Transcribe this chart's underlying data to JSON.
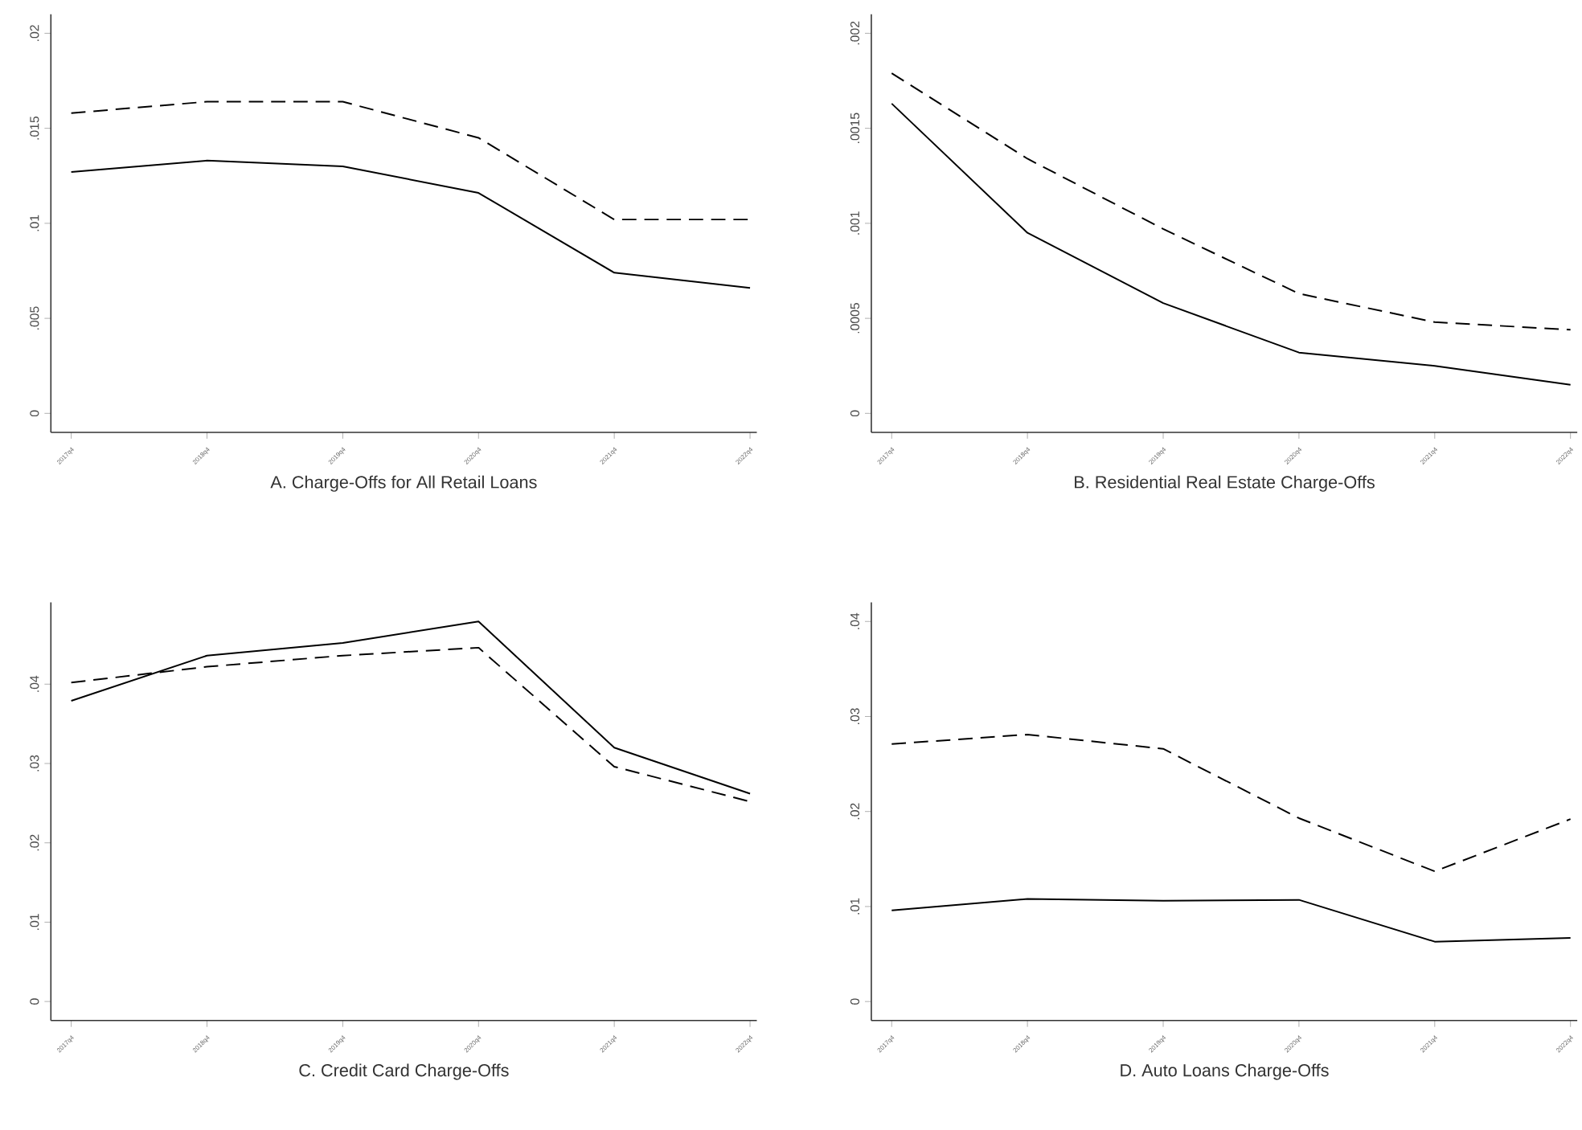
{
  "chart_data": [
    {
      "type": "line",
      "xlabel": "A. Charge-Offs for All Retail Loans",
      "categories": [
        "2017q4",
        "2018q4",
        "2019q4",
        "2020q4",
        "2021q4",
        "2022q4"
      ],
      "ylim": [
        -0.001,
        0.021
      ],
      "yticks": [
        {
          "value": 0,
          "label": "0"
        },
        {
          "value": 0.005,
          "label": ".005"
        },
        {
          "value": 0.01,
          "label": ".01"
        },
        {
          "value": 0.015,
          "label": ".015"
        },
        {
          "value": 0.02,
          "label": ".02"
        }
      ],
      "grid": false,
      "series": [
        {
          "color": "#000000",
          "line_style": "solid",
          "values": [
            0.0127,
            0.0133,
            0.013,
            0.0116,
            0.0074,
            0.0066
          ]
        },
        {
          "color": "#000000",
          "line_style": "dashed",
          "values": [
            0.0158,
            0.0164,
            0.0164,
            0.0145,
            0.0102,
            0.0102
          ]
        }
      ]
    },
    {
      "type": "line",
      "xlabel": "B. Residential Real Estate Charge-Offs",
      "categories": [
        "2017q4",
        "2018q4",
        "2019q4",
        "2020q4",
        "2021q4",
        "2022q4"
      ],
      "ylim": [
        -0.0001,
        0.0021
      ],
      "yticks": [
        {
          "value": 0,
          "label": "0"
        },
        {
          "value": 0.0005,
          "label": ".0005"
        },
        {
          "value": 0.001,
          "label": ".001"
        },
        {
          "value": 0.0015,
          "label": ".0015"
        },
        {
          "value": 0.002,
          "label": ".002"
        }
      ],
      "grid": false,
      "series": [
        {
          "color": "#000000",
          "line_style": "solid",
          "values": [
            0.00163,
            0.00095,
            0.00058,
            0.00032,
            0.00025,
            0.00015
          ]
        },
        {
          "color": "#000000",
          "line_style": "dashed",
          "values": [
            0.00179,
            0.00134,
            0.00097,
            0.00063,
            0.00048,
            0.00044
          ]
        }
      ]
    },
    {
      "type": "line",
      "xlabel": "C. Credit Card Charge-Offs",
      "categories": [
        "2017q4",
        "2018q4",
        "2019q4",
        "2020q4",
        "2021q4",
        "2022q4"
      ],
      "ylim": [
        -0.0024,
        0.0503
      ],
      "yticks": [
        {
          "value": 0,
          "label": "0"
        },
        {
          "value": 0.01,
          "label": ".01"
        },
        {
          "value": 0.02,
          "label": ".02"
        },
        {
          "value": 0.03,
          "label": ".03"
        },
        {
          "value": 0.04,
          "label": ".04"
        }
      ],
      "grid": false,
      "series": [
        {
          "color": "#000000",
          "line_style": "solid",
          "values": [
            0.0379,
            0.0436,
            0.0452,
            0.0479,
            0.032,
            0.0262
          ]
        },
        {
          "color": "#000000",
          "line_style": "dashed",
          "values": [
            0.0402,
            0.0422,
            0.0436,
            0.0446,
            0.0296,
            0.0252
          ]
        }
      ]
    },
    {
      "type": "line",
      "xlabel": "D. Auto Loans Charge-Offs",
      "categories": [
        "2017q4",
        "2018q4",
        "2019q4",
        "2020q4",
        "2021q4",
        "2022q4"
      ],
      "ylim": [
        -0.002,
        0.042
      ],
      "yticks": [
        {
          "value": 0,
          "label": "0"
        },
        {
          "value": 0.01,
          "label": ".01"
        },
        {
          "value": 0.02,
          "label": ".02"
        },
        {
          "value": 0.03,
          "label": ".03"
        },
        {
          "value": 0.04,
          "label": ".04"
        }
      ],
      "grid": false,
      "series": [
        {
          "color": "#000000",
          "line_style": "solid",
          "values": [
            0.0096,
            0.0108,
            0.0106,
            0.0107,
            0.0063,
            0.0067
          ]
        },
        {
          "color": "#000000",
          "line_style": "dashed",
          "values": [
            0.0271,
            0.0281,
            0.0266,
            0.0193,
            0.0137,
            0.0192
          ]
        }
      ]
    }
  ]
}
